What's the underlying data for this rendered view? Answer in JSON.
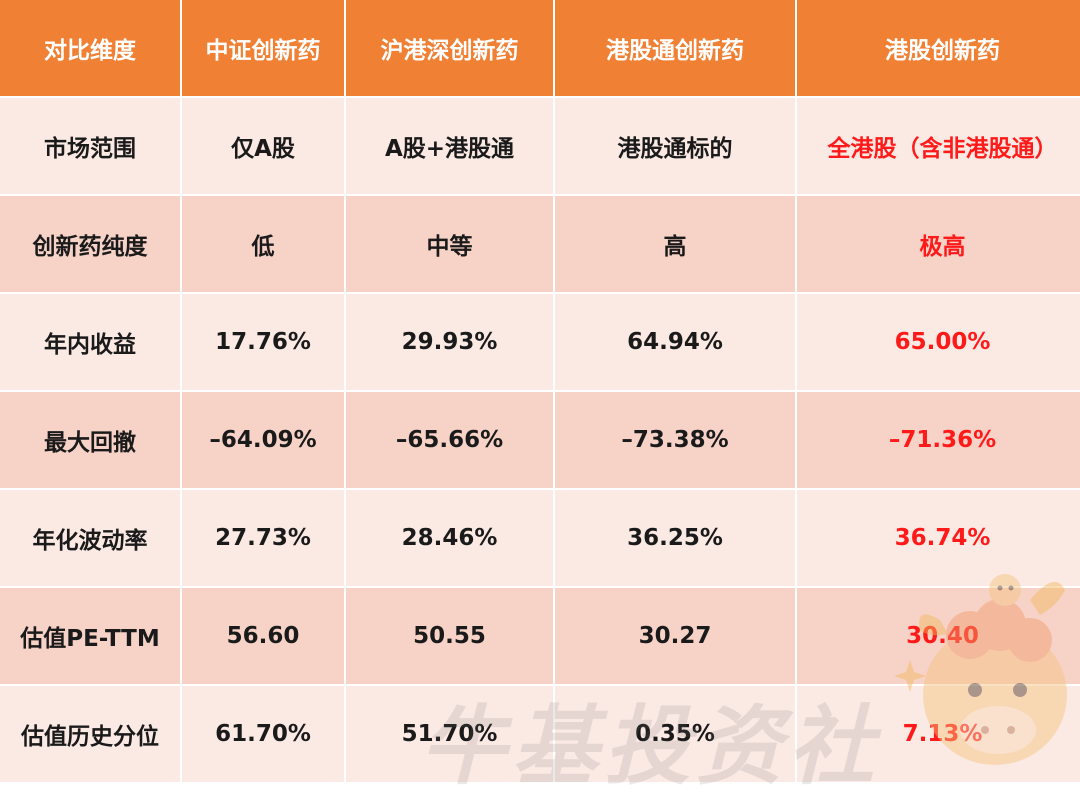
{
  "headers": [
    "对比维度",
    "中证创新药",
    "沪港深创新药",
    "港股通创新药",
    "港股创新药"
  ],
  "rows": [
    {
      "label": "市场范围",
      "values": [
        "仅A股",
        "A股+港股通",
        "港股通标的",
        "全港股（含非港股通）"
      ]
    },
    {
      "label": "创新药纯度",
      "values": [
        "低",
        "中等",
        "高",
        "极高"
      ]
    },
    {
      "label": "年内收益",
      "values": [
        "17.76%",
        "29.93%",
        "64.94%",
        "65.00%"
      ]
    },
    {
      "label": "最大回撤",
      "values": [
        "–64.09%",
        "–65.66%",
        "–73.38%",
        "–71.36%"
      ]
    },
    {
      "label": "年化波动率",
      "values": [
        "27.73%",
        "28.46%",
        "36.25%",
        "36.74%"
      ]
    },
    {
      "label": "估值PE-TTM",
      "values": [
        "56.60",
        "50.55",
        "30.27",
        "30.40"
      ]
    },
    {
      "label": "估值历史分位",
      "values": [
        "61.70%",
        "51.70%",
        "0.35%",
        "7.13%"
      ]
    }
  ],
  "watermark": "牛基投资社",
  "colors": {
    "header_bg": "#ef8034",
    "row_light": "#fbe9e4",
    "row_dark": "#f6d2c7",
    "highlight_text": "#ff1a1a"
  },
  "icons": {
    "mascot": "cow-mascot-icon"
  }
}
